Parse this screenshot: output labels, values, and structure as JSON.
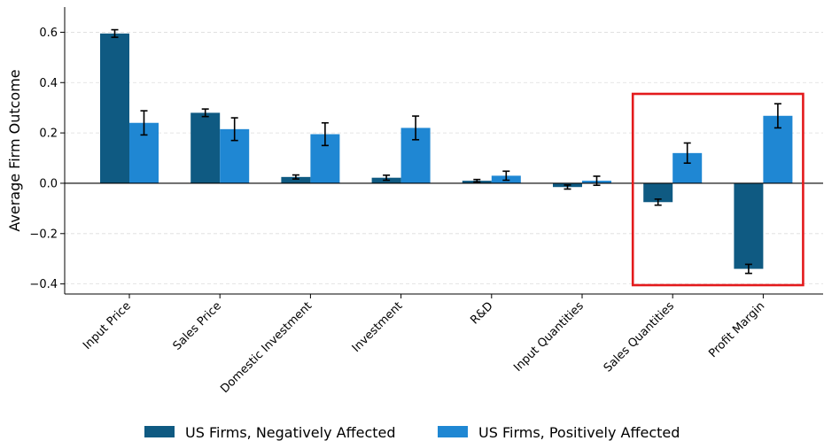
{
  "chart_data": {
    "type": "bar",
    "ylabel": "Average Firm Outcome",
    "xlabel": "",
    "ylim": [
      -0.44,
      0.7
    ],
    "yticks": [
      -0.4,
      -0.2,
      0.0,
      0.2,
      0.4,
      0.6
    ],
    "ytick_labels": [
      "−0.4",
      "−0.2",
      "0.0",
      "0.2",
      "0.4",
      "0.6"
    ],
    "grid": "horizontal dashed",
    "legend_position": "bottom",
    "categories": [
      "Input Price",
      "Sales Price",
      "Domestic Investment",
      "Investment",
      "R&D",
      "Input Quantities",
      "Sales Quantities",
      "Profit Margin"
    ],
    "series": [
      {
        "name": "US Firms, Negatively Affected",
        "color": "#0f5a82",
        "values": [
          0.595,
          0.28,
          0.025,
          0.022,
          0.01,
          -0.015,
          -0.075,
          -0.34
        ],
        "errors": [
          0.015,
          0.015,
          0.008,
          0.01,
          0.005,
          0.008,
          0.012,
          0.018
        ]
      },
      {
        "name": "US Firms, Positively Affected",
        "color": "#1f87d3",
        "values": [
          0.24,
          0.215,
          0.195,
          0.22,
          0.03,
          0.01,
          0.12,
          0.268
        ],
        "errors": [
          0.048,
          0.045,
          0.045,
          0.047,
          0.018,
          0.018,
          0.04,
          0.048
        ]
      }
    ],
    "highlight": {
      "categories": [
        "Sales Quantities",
        "Profit Margin"
      ],
      "color": "#e31a1c"
    }
  }
}
